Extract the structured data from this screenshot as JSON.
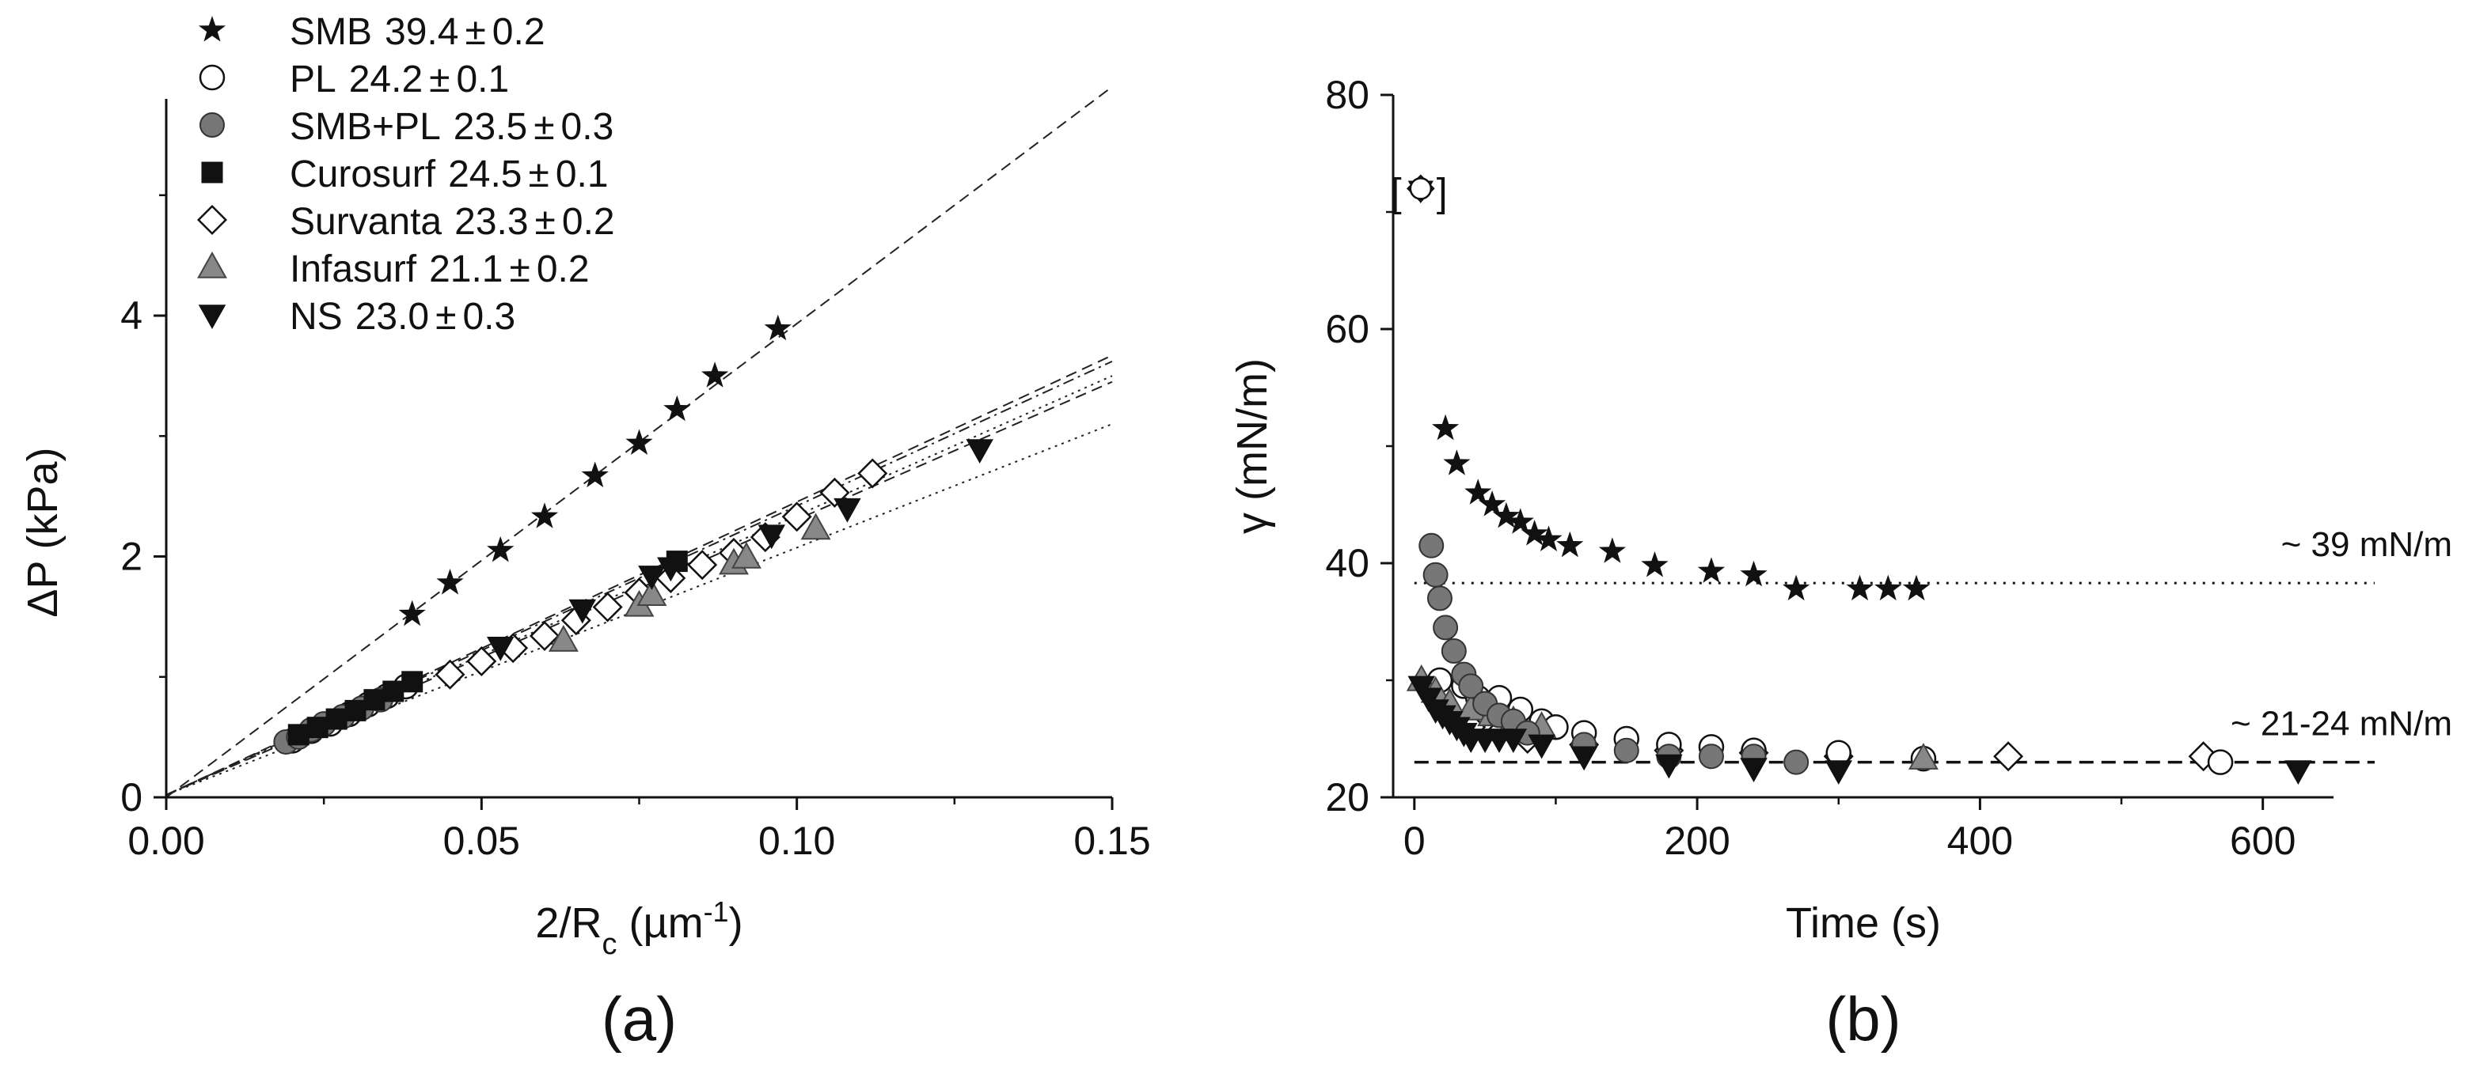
{
  "chart_data": [
    {
      "id": "a",
      "type": "scatter",
      "panel_label": "(a)",
      "xlabel": "2/R",
      "xlabel_sub": "c",
      "xlabel_unit_open": " (µm",
      "xlabel_sup": "-1",
      "xlabel_unit_close": ")",
      "ylabel": "ΔP (kPa)",
      "xlim": [
        0,
        0.15
      ],
      "ylim": [
        0,
        5.8
      ],
      "xticks": [
        0.0,
        0.05,
        0.1,
        0.15
      ],
      "xtick_labels": [
        "0.00",
        "0.05",
        "0.10",
        "0.15"
      ],
      "yticks": [
        0,
        2,
        4
      ],
      "ytick_labels": [
        "0",
        "2",
        "4"
      ],
      "legend": [
        {
          "name": "SMB",
          "value": "39.4",
          "pm": "±",
          "err": "0.2",
          "marker": "star"
        },
        {
          "name": "PL",
          "value": "24.2",
          "pm": "±",
          "err": "0.1",
          "marker": "circle-open"
        },
        {
          "name": "SMB+PL",
          "value": "23.5",
          "pm": "±",
          "err": "0.3",
          "marker": "circle-gray"
        },
        {
          "name": "Curosurf",
          "value": "24.5",
          "pm": "±",
          "err": "0.1",
          "marker": "square"
        },
        {
          "name": "Survanta",
          "value": "23.3",
          "pm": "±",
          "err": "0.2",
          "marker": "diamond-open"
        },
        {
          "name": "Infasurf",
          "value": "21.1",
          "pm": "±",
          "err": "0.2",
          "marker": "triangle-gray"
        },
        {
          "name": "NS",
          "value": "23.0",
          "pm": "±",
          "err": "0.3",
          "marker": "triangle-down"
        }
      ],
      "fit_lines": [
        {
          "name": "SMB",
          "x": [
            0,
            0.15
          ],
          "y": [
            0,
            5.9
          ],
          "dash": "dashed"
        },
        {
          "name": "Curosurf",
          "x": [
            0,
            0.15
          ],
          "y": [
            0.02,
            3.67
          ],
          "dash": "dashed"
        },
        {
          "name": "PL",
          "x": [
            0,
            0.15
          ],
          "y": [
            0.02,
            3.62
          ],
          "dash": "dashdot"
        },
        {
          "name": "Survanta",
          "x": [
            0,
            0.15
          ],
          "y": [
            0.02,
            3.5
          ],
          "dash": "dotted"
        },
        {
          "name": "NS",
          "x": [
            0,
            0.15
          ],
          "y": [
            0.02,
            3.45
          ],
          "dash": "dashed"
        },
        {
          "name": "Infasurf",
          "x": [
            0,
            0.15
          ],
          "y": [
            0.02,
            3.1
          ],
          "dash": "dotted"
        }
      ],
      "series": [
        {
          "name": "SMB",
          "marker": "star",
          "x": [
            0.039,
            0.045,
            0.053,
            0.06,
            0.068,
            0.075,
            0.081,
            0.087,
            0.097
          ],
          "y": [
            1.52,
            1.78,
            2.05,
            2.33,
            2.67,
            2.94,
            3.22,
            3.5,
            3.89
          ]
        },
        {
          "name": "PL",
          "marker": "circle-open",
          "x": [
            0.02,
            0.023,
            0.026,
            0.029,
            0.032,
            0.035,
            0.038
          ],
          "y": [
            0.47,
            0.55,
            0.61,
            0.69,
            0.77,
            0.84,
            0.92
          ]
        },
        {
          "name": "SMB+PL",
          "marker": "circle-gray",
          "x": [
            0.019,
            0.021,
            0.023,
            0.025,
            0.028,
            0.031,
            0.034
          ],
          "y": [
            0.46,
            0.5,
            0.56,
            0.61,
            0.67,
            0.74,
            0.81
          ]
        },
        {
          "name": "Curosurf",
          "marker": "square",
          "x": [
            0.021,
            0.024,
            0.027,
            0.03,
            0.033,
            0.036,
            0.039,
            0.081
          ],
          "y": [
            0.52,
            0.58,
            0.65,
            0.72,
            0.81,
            0.88,
            0.96,
            1.96
          ]
        },
        {
          "name": "Survanta",
          "marker": "diamond-open",
          "x": [
            0.045,
            0.05,
            0.055,
            0.06,
            0.065,
            0.07,
            0.075,
            0.08,
            0.085,
            0.09,
            0.095,
            0.1,
            0.106,
            0.112
          ],
          "y": [
            1.02,
            1.13,
            1.24,
            1.34,
            1.47,
            1.58,
            1.7,
            1.82,
            1.93,
            2.03,
            2.16,
            2.33,
            2.53,
            2.69
          ]
        },
        {
          "name": "Infasurf",
          "marker": "triangle-gray",
          "x": [
            0.063,
            0.075,
            0.077,
            0.09,
            0.092,
            0.103
          ],
          "y": [
            1.3,
            1.59,
            1.68,
            1.94,
            1.99,
            2.23
          ]
        },
        {
          "name": "NS",
          "marker": "triangle-down",
          "x": [
            0.053,
            0.066,
            0.077,
            0.08,
            0.096,
            0.108,
            0.129
          ],
          "y": [
            1.25,
            1.56,
            1.84,
            1.91,
            2.18,
            2.4,
            2.89
          ]
        }
      ]
    },
    {
      "id": "b",
      "type": "scatter",
      "panel_label": "(b)",
      "xlabel": "Time (s)",
      "ylabel": "γ (mN/m)",
      "xlim": [
        -15,
        650
      ],
      "ylim": [
        20,
        80
      ],
      "xticks": [
        0,
        200,
        400,
        600
      ],
      "xtick_labels": [
        "0",
        "200",
        "400",
        "600"
      ],
      "yticks": [
        20,
        40,
        60,
        80
      ],
      "ytick_labels": [
        "20",
        "40",
        "60",
        "80"
      ],
      "reference_lines": [
        {
          "y": 38.3,
          "style": "dotted",
          "label": "~ 39 mN/m"
        },
        {
          "y": 23.0,
          "style": "dashed",
          "label": "~ 21-24 mN/m"
        }
      ],
      "initial_marker": {
        "x": 0,
        "y": 72,
        "bracket_open": "[",
        "bracket_close": "]"
      },
      "series": [
        {
          "name": "SMB",
          "marker": "star",
          "x": [
            22,
            30,
            45,
            55,
            65,
            75,
            85,
            95,
            110,
            140,
            170,
            210,
            240,
            270,
            315,
            335,
            355
          ],
          "y": [
            51.5,
            48.5,
            46.0,
            45.0,
            44.0,
            43.5,
            42.5,
            42.0,
            41.5,
            41.0,
            39.8,
            39.3,
            39.0,
            37.8,
            37.8,
            37.8,
            37.8
          ]
        },
        {
          "name": "PL",
          "marker": "circle-open",
          "x": [
            18,
            35,
            45,
            60,
            75,
            90,
            100,
            120,
            150,
            180,
            210,
            240,
            300,
            360,
            570
          ],
          "y": [
            30.0,
            29.5,
            28.5,
            28.5,
            27.5,
            26.5,
            26.0,
            25.5,
            25.0,
            24.5,
            24.3,
            24.0,
            23.8,
            23.3,
            23.0
          ]
        },
        {
          "name": "SMB+PL",
          "marker": "circle-gray",
          "x": [
            12,
            15,
            18,
            22,
            28,
            35,
            40,
            50,
            60,
            70,
            80,
            120,
            150,
            180,
            210,
            240,
            270
          ],
          "y": [
            41.5,
            39.0,
            37.0,
            34.5,
            32.5,
            30.5,
            29.5,
            28.0,
            27.0,
            26.5,
            25.5,
            24.5,
            24.0,
            23.5,
            23.5,
            23.5,
            23.0
          ]
        },
        {
          "name": "Survanta",
          "marker": "diamond-open",
          "x": [
            40,
            60,
            80,
            120,
            180,
            240,
            300,
            420,
            558
          ],
          "y": [
            26.0,
            25.5,
            25.0,
            24.5,
            24.0,
            23.8,
            23.5,
            23.5,
            23.5
          ]
        },
        {
          "name": "Infasurf",
          "marker": "triangle-gray",
          "x": [
            5,
            15,
            25,
            40,
            55,
            70,
            90,
            360
          ],
          "y": [
            30.0,
            29.0,
            28.0,
            27.5,
            27.0,
            26.5,
            26.0,
            23.3
          ]
        },
        {
          "name": "NS",
          "marker": "triangle-down",
          "x": [
            5,
            10,
            15,
            20,
            25,
            30,
            35,
            40,
            50,
            60,
            70,
            90,
            120,
            180,
            240,
            300,
            625
          ],
          "y": [
            29.5,
            28.5,
            27.5,
            27.0,
            26.5,
            26.0,
            25.5,
            25.0,
            25.0,
            25.0,
            25.0,
            24.5,
            23.5,
            22.8,
            22.5,
            22.3,
            22.3
          ]
        }
      ]
    }
  ]
}
